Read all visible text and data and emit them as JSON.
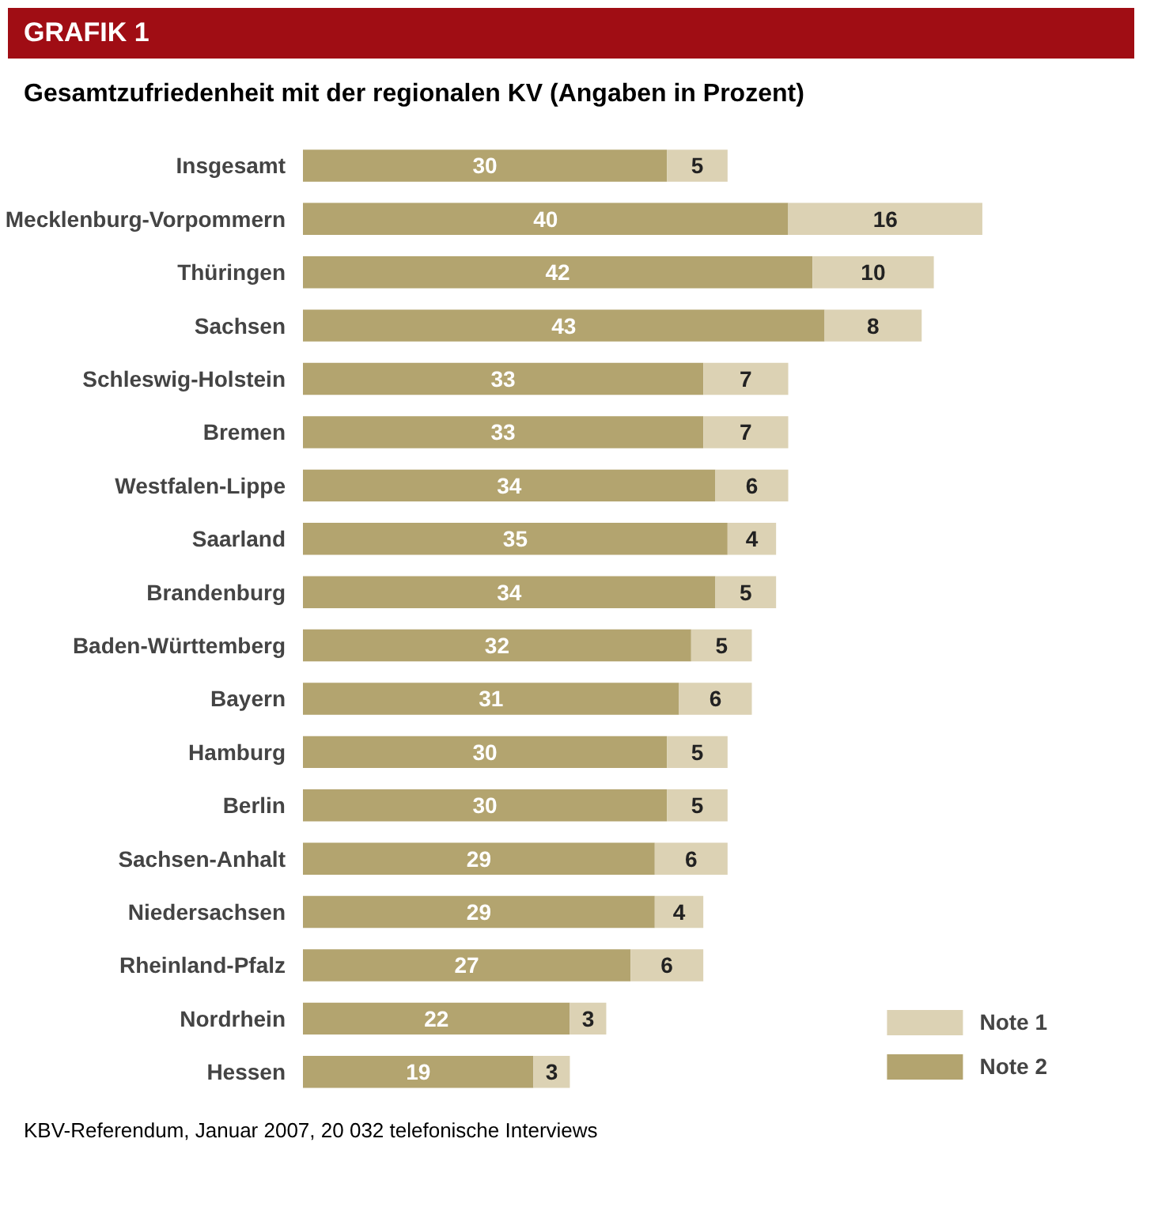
{
  "chart_data": {
    "type": "bar",
    "orientation": "horizontal",
    "stacked": true,
    "data_labels": true,
    "legend": "bottom right",
    "grid": false,
    "title": "GRAFIK 1",
    "subtitle": "Gesamtzufriedenheit mit der regionalen KV (Angaben in Prozent)",
    "annotations": [
      "KBV-Referendum, Januar 2007, 20 032 telefonische Interviews"
    ],
    "categories": [
      "Insgesamt",
      "Mecklenburg-Vorpommern",
      "Thüringen",
      "Sachsen",
      "Schleswig-Holstein",
      "Bremen",
      "Westfalen-Lippe",
      "Saarland",
      "Brandenburg",
      "Baden-Württemberg",
      "Bayern",
      "Hamburg",
      "Berlin",
      "Sachsen-Anhalt",
      "Niedersachsen",
      "Rheinland-Pfalz",
      "Nordrhein",
      "Hessen"
    ],
    "series": [
      {
        "name": "Note 2",
        "color": "#b3a46f",
        "values": [
          30,
          40,
          42,
          43,
          33,
          33,
          34,
          35,
          34,
          32,
          31,
          30,
          30,
          29,
          29,
          27,
          22,
          19
        ]
      },
      {
        "name": "Note 1",
        "color": "#dcd2b4",
        "values": [
          5,
          16,
          10,
          8,
          7,
          7,
          6,
          4,
          5,
          5,
          6,
          5,
          5,
          6,
          4,
          6,
          3,
          3
        ]
      }
    ]
  }
}
